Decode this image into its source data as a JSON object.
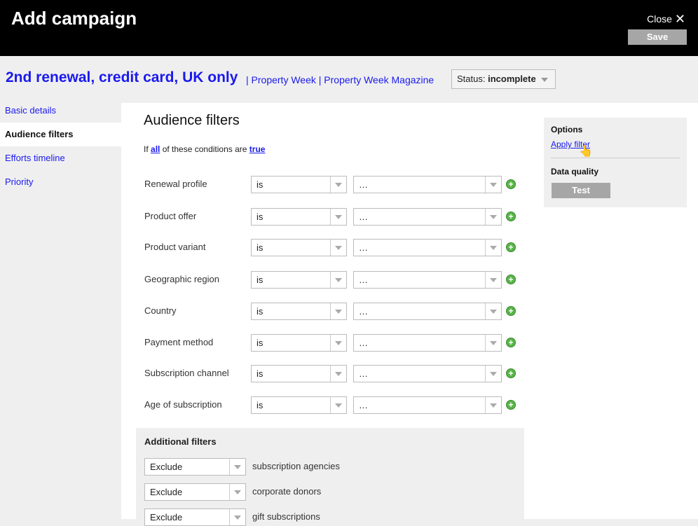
{
  "header": {
    "title": "Add campaign",
    "close_label": "Close",
    "save_label": "Save"
  },
  "campaign": {
    "name": "2nd renewal, credit card, UK only",
    "crumbs": [
      "Property Week",
      "Property Week Magazine"
    ],
    "status_label": "Status:",
    "status_value": "incomplete"
  },
  "sidebar": {
    "items": [
      {
        "label": "Basic details"
      },
      {
        "label": "Audience filters",
        "active": true
      },
      {
        "label": "Efforts timeline"
      },
      {
        "label": "Priority"
      }
    ]
  },
  "main": {
    "title": "Audience filters",
    "cond_prefix": "If",
    "cond_all": "all",
    "cond_mid": "of these conditions are",
    "cond_true": "true",
    "filters": [
      {
        "label": "Renewal profile",
        "op": "is",
        "value": "…"
      },
      {
        "label": "Product offer",
        "op": "is",
        "value": "…"
      },
      {
        "label": "Product variant",
        "op": "is",
        "value": "…"
      },
      {
        "label": "Geographic region",
        "op": "is",
        "value": "…"
      },
      {
        "label": "Country",
        "op": "is",
        "value": "…"
      },
      {
        "label": "Payment method",
        "op": "is",
        "value": "…"
      },
      {
        "label": "Subscription channel",
        "op": "is",
        "value": "…"
      },
      {
        "label": "Age of subscription",
        "op": "is",
        "value": "…"
      }
    ],
    "additional": {
      "title": "Additional filters",
      "rows": [
        {
          "action": "Exclude",
          "text": "subscription agencies"
        },
        {
          "action": "Exclude",
          "text": "corporate donors"
        },
        {
          "action": "Exclude",
          "text": "gift subscriptions"
        }
      ]
    }
  },
  "options": {
    "title": "Options",
    "apply_filter": "Apply filter",
    "data_quality": "Data quality",
    "test_label": "Test"
  }
}
